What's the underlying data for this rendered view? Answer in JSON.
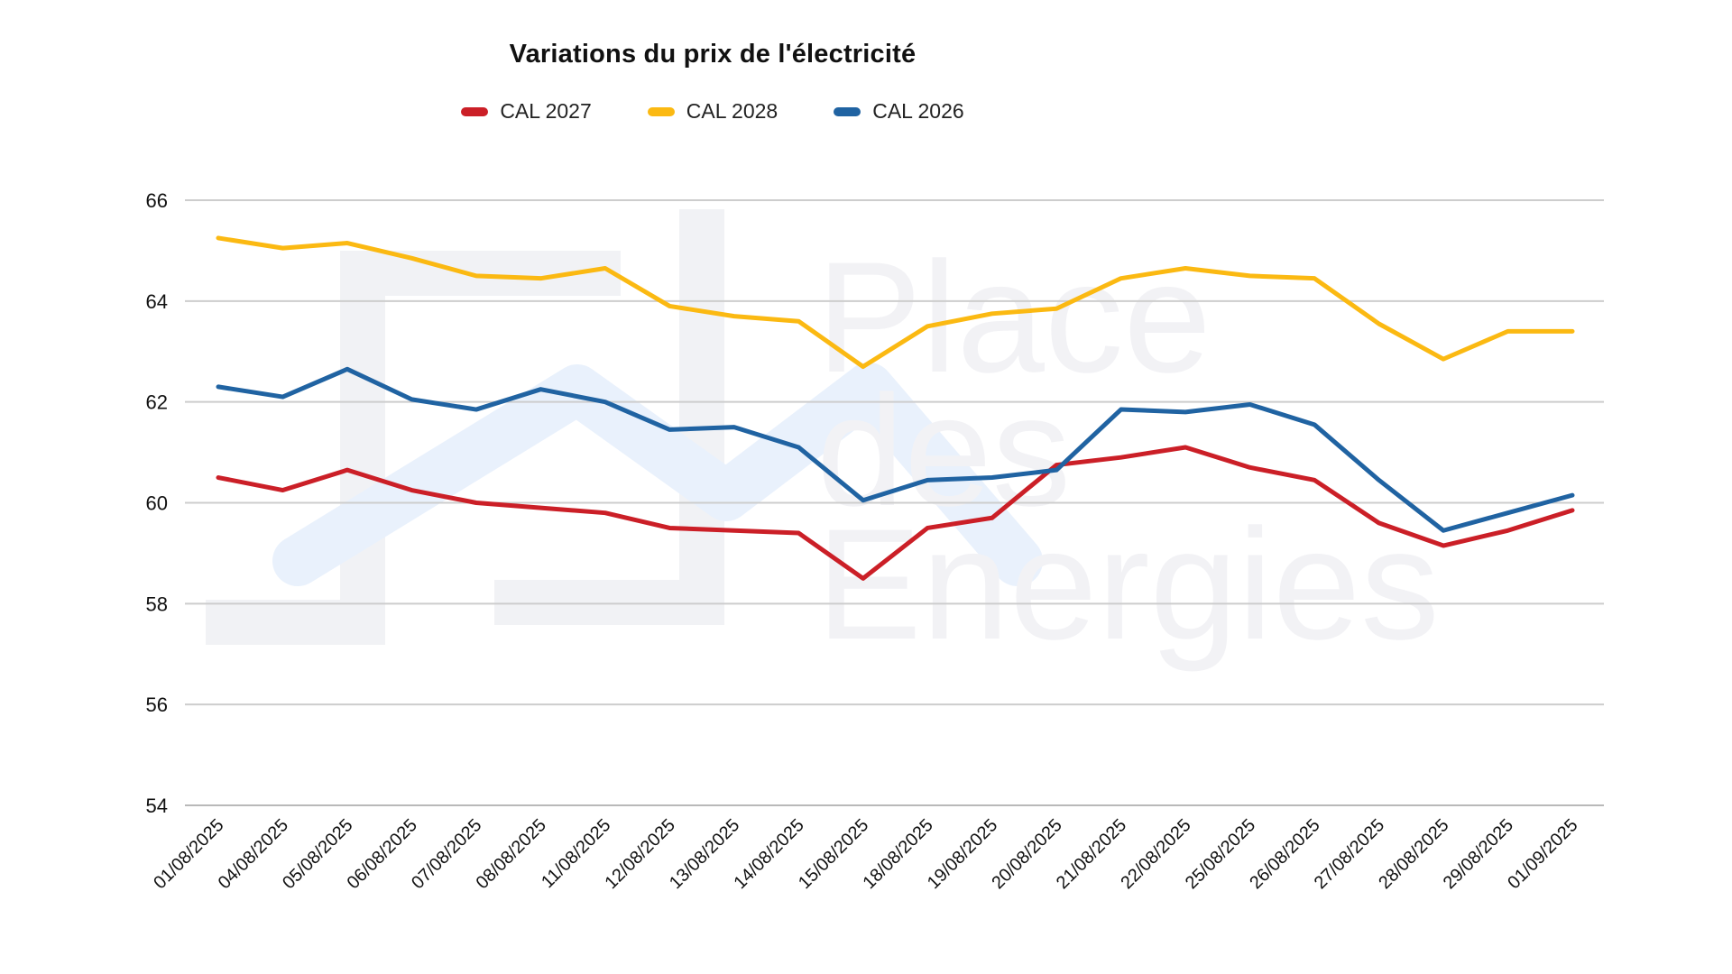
{
  "title": "Variations du prix de l'électricité",
  "watermark": {
    "line1": "Place",
    "line2": "des",
    "line3": "Energies"
  },
  "chart_data": {
    "type": "line",
    "title": "Variations du prix de l'électricité",
    "xlabel": "",
    "ylabel": "",
    "ylim": [
      54,
      66
    ],
    "yticks": [
      66,
      64,
      62,
      60,
      58,
      56,
      54
    ],
    "grid": true,
    "legend_position": "top",
    "x": [
      "01/08/2025",
      "04/08/2025",
      "05/08/2025",
      "06/08/2025",
      "07/08/2025",
      "08/08/2025",
      "11/08/2025",
      "12/08/2025",
      "13/08/2025",
      "14/08/2025",
      "15/08/2025",
      "18/08/2025",
      "19/08/2025",
      "20/08/2025",
      "21/08/2025",
      "22/08/2025",
      "25/08/2025",
      "26/08/2025",
      "27/08/2025",
      "28/08/2025",
      "29/08/2025",
      "01/09/2025"
    ],
    "series": [
      {
        "name": "CAL 2027",
        "color": "#cb1f27",
        "values": [
          60.5,
          60.25,
          60.65,
          60.25,
          60.0,
          59.9,
          59.8,
          59.5,
          59.45,
          59.4,
          58.5,
          59.5,
          59.7,
          60.75,
          60.9,
          61.1,
          60.7,
          60.45,
          59.6,
          59.15,
          59.45,
          59.85
        ]
      },
      {
        "name": "CAL 2028",
        "color": "#fbb912",
        "values": [
          65.25,
          65.05,
          65.15,
          64.85,
          64.5,
          64.45,
          64.65,
          63.9,
          63.7,
          63.6,
          62.7,
          63.5,
          63.75,
          63.85,
          64.45,
          64.65,
          64.5,
          64.45,
          63.55,
          62.85,
          63.4,
          63.4
        ]
      },
      {
        "name": "CAL 2026",
        "color": "#2063a2",
        "values": [
          62.3,
          62.1,
          62.65,
          62.05,
          61.85,
          62.25,
          62.0,
          61.45,
          61.5,
          61.1,
          60.05,
          60.45,
          60.5,
          60.65,
          61.85,
          61.8,
          61.95,
          61.55,
          60.45,
          59.45,
          59.8,
          60.15
        ]
      }
    ]
  }
}
